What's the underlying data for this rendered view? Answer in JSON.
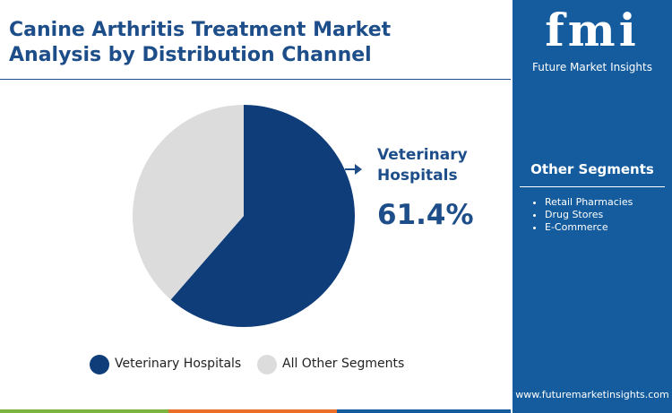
{
  "chart_data": {
    "type": "pie",
    "title": "Canine Arthritis Treatment Market Analysis by Distribution Channel",
    "categories": [
      "Veterinary Hospitals",
      "All Other Segments"
    ],
    "values": [
      61.4,
      38.6
    ],
    "value_labels": [
      "61.4%",
      null
    ],
    "colors": [
      "#0e3d7a",
      "#dcdcdc"
    ]
  },
  "sidebar": {
    "logo": "fmi",
    "brand": "Future Market Insights",
    "heading": "Other Segments",
    "items": [
      "Retail Pharmacies",
      "Drug Stores",
      "E-Commerce"
    ],
    "url": "www.futuremarketinsights.com"
  }
}
